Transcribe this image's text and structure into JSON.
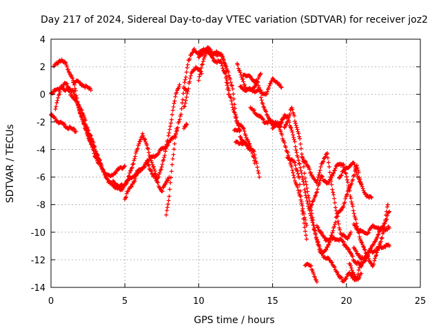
{
  "chart_data": {
    "type": "scatter",
    "title": "Day 217 of 2024, Sidereal Day-to-day VTEC variation (SDTVAR) for receiver joz2",
    "xlabel": "GPS time / hours",
    "ylabel": "SDTVAR / TECUs",
    "xlim": [
      0,
      25
    ],
    "ylim": [
      -14,
      4
    ],
    "xticks": [
      0,
      5,
      10,
      15,
      20,
      25
    ],
    "yticks": [
      -14,
      -12,
      -10,
      -8,
      -6,
      -4,
      -2,
      0,
      2,
      4
    ],
    "grid": true,
    "marker": "plus",
    "color": "#ff0000",
    "tracks": [
      [
        [
          0.0,
          -1.5
        ],
        [
          0.5,
          -2.0
        ],
        [
          1.0,
          -2.3
        ],
        [
          1.7,
          -2.7
        ]
      ],
      [
        [
          0.0,
          0.1
        ],
        [
          0.5,
          0.4
        ],
        [
          1.0,
          0.8
        ],
        [
          1.5,
          0.2
        ],
        [
          2.0,
          -1.0
        ],
        [
          2.5,
          -2.5
        ],
        [
          3.0,
          -4.0
        ],
        [
          3.5,
          -5.5
        ],
        [
          4.0,
          -6.5
        ],
        [
          4.5,
          -6.8
        ],
        [
          5.0,
          -6.5
        ],
        [
          5.5,
          -6.0
        ],
        [
          6.0,
          -5.5
        ],
        [
          6.5,
          -5.0
        ]
      ],
      [
        [
          0.2,
          2.0
        ],
        [
          0.6,
          2.5
        ],
        [
          1.0,
          2.2
        ],
        [
          1.5,
          1.0
        ],
        [
          2.0,
          -1.5
        ],
        [
          2.5,
          -3.0
        ],
        [
          3.0,
          -4.5
        ],
        [
          3.5,
          -5.5
        ],
        [
          4.0,
          -6.0
        ],
        [
          4.5,
          -5.5
        ],
        [
          5.0,
          -5.2
        ]
      ],
      [
        [
          0.3,
          -1.0
        ],
        [
          0.7,
          0.5
        ],
        [
          1.2,
          0.2
        ],
        [
          1.7,
          -0.5
        ],
        [
          2.2,
          -2.0
        ],
        [
          2.7,
          -3.5
        ],
        [
          3.3,
          -4.8
        ]
      ],
      [
        [
          1.5,
          1.0
        ],
        [
          2.0,
          0.8
        ],
        [
          2.7,
          0.3
        ]
      ],
      [
        [
          4.2,
          -6.2
        ],
        [
          4.7,
          -7.0
        ],
        [
          5.2,
          -6.2
        ],
        [
          5.7,
          -4.5
        ],
        [
          6.2,
          -2.8
        ],
        [
          6.7,
          -4.5
        ],
        [
          7.2,
          -6.2
        ],
        [
          7.7,
          -4.5
        ],
        [
          8.2,
          -1.5
        ],
        [
          8.5,
          0.2
        ],
        [
          8.7,
          0.7
        ]
      ],
      [
        [
          5.0,
          -7.5
        ],
        [
          5.5,
          -6.5
        ],
        [
          6.0,
          -5.5
        ],
        [
          6.5,
          -5.0
        ],
        [
          7.0,
          -6.0
        ],
        [
          7.5,
          -7.0
        ],
        [
          8.0,
          -6.0
        ]
      ],
      [
        [
          6.5,
          -4.8
        ],
        [
          7.0,
          -4.5
        ],
        [
          7.5,
          -4.0
        ],
        [
          8.0,
          -3.5
        ],
        [
          8.4,
          -3.0
        ],
        [
          8.8,
          -1.5
        ],
        [
          9.0,
          0.5
        ],
        [
          9.2,
          0.3
        ]
      ],
      [
        [
          7.8,
          -8.8
        ],
        [
          8.0,
          -7.5
        ],
        [
          8.2,
          -5.0
        ],
        [
          8.5,
          -2.5
        ]
      ],
      [
        [
          9.0,
          -2.5
        ],
        [
          9.2,
          -2.2
        ]
      ],
      [
        [
          9.0,
          -1.0
        ],
        [
          9.3,
          0.5
        ],
        [
          9.5,
          1.5
        ],
        [
          9.8,
          2.0
        ],
        [
          10.2,
          1.5
        ]
      ],
      [
        [
          9.0,
          0.5
        ],
        [
          9.3,
          2.5
        ],
        [
          9.7,
          3.2
        ],
        [
          10.0,
          3.0
        ],
        [
          10.5,
          3.3
        ],
        [
          11.0,
          2.5
        ],
        [
          11.5,
          2.3
        ],
        [
          11.8,
          1.5
        ],
        [
          12.0,
          0.0
        ]
      ],
      [
        [
          10.0,
          1.0
        ],
        [
          10.3,
          2.5
        ],
        [
          10.6,
          3.4
        ],
        [
          10.9,
          3.0
        ],
        [
          11.2,
          3.0
        ],
        [
          11.6,
          2.8
        ],
        [
          12.0,
          1.5
        ],
        [
          12.3,
          0.5
        ],
        [
          12.5,
          -1.5
        ],
        [
          12.8,
          -3.0
        ],
        [
          13.2,
          -3.7
        ],
        [
          13.7,
          -4.0
        ],
        [
          14.1,
          -6.0
        ]
      ],
      [
        [
          10.0,
          2.8
        ],
        [
          10.5,
          3.2
        ],
        [
          11.0,
          2.9
        ],
        [
          11.5,
          3.0
        ],
        [
          11.8,
          2.0
        ],
        [
          12.0,
          0.5
        ],
        [
          12.3,
          -1.0
        ],
        [
          12.6,
          -2.0
        ],
        [
          13.0,
          -2.5
        ],
        [
          13.4,
          -3.5
        ],
        [
          13.8,
          -5.0
        ]
      ],
      [
        [
          12.4,
          -2.5
        ],
        [
          12.8,
          -2.6
        ]
      ],
      [
        [
          12.5,
          -3.5
        ],
        [
          13.0,
          -3.5
        ],
        [
          13.5,
          -4.0
        ]
      ],
      [
        [
          12.6,
          2.3
        ],
        [
          12.9,
          1.2
        ],
        [
          13.2,
          0.5
        ],
        [
          13.6,
          0.3
        ],
        [
          13.9,
          0.8
        ],
        [
          14.2,
          1.5
        ]
      ],
      [
        [
          12.8,
          0.5
        ],
        [
          13.2,
          0.3
        ],
        [
          13.6,
          0.3
        ],
        [
          14.2,
          0.2
        ],
        [
          14.6,
          0.0
        ],
        [
          15.0,
          1.2
        ],
        [
          15.3,
          0.8
        ],
        [
          15.6,
          0.5
        ]
      ],
      [
        [
          13.0,
          1.5
        ],
        [
          13.5,
          1.2
        ],
        [
          14.0,
          0.8
        ],
        [
          14.3,
          -0.5
        ],
        [
          14.6,
          -1.5
        ],
        [
          15.0,
          -2.2
        ],
        [
          15.5,
          -2.3
        ],
        [
          15.8,
          -1.5
        ]
      ],
      [
        [
          13.5,
          -1.0
        ],
        [
          14.0,
          -1.5
        ],
        [
          14.5,
          -2.0
        ],
        [
          14.8,
          -2.0
        ],
        [
          15.3,
          -2.0
        ],
        [
          15.8,
          -3.5
        ],
        [
          16.2,
          -5.0
        ],
        [
          16.6,
          -6.5
        ],
        [
          17.0,
          -8.0
        ],
        [
          17.3,
          -9.5
        ]
      ],
      [
        [
          15.0,
          -2.5
        ],
        [
          15.5,
          -2.0
        ],
        [
          16.0,
          -1.5
        ],
        [
          16.5,
          -3.5
        ],
        [
          17.0,
          -6.0
        ],
        [
          17.5,
          -8.5
        ],
        [
          18.0,
          -10.5
        ],
        [
          18.3,
          -11.5
        ]
      ],
      [
        [
          15.8,
          -2.5
        ],
        [
          16.3,
          -1.0
        ],
        [
          16.8,
          -3.0
        ],
        [
          17.2,
          -6.0
        ],
        [
          17.7,
          -9.0
        ],
        [
          18.2,
          -11.5
        ],
        [
          18.8,
          -12.0
        ],
        [
          19.2,
          -12.5
        ],
        [
          19.5,
          -13.3
        ],
        [
          19.8,
          -13.5
        ],
        [
          20.2,
          -13.0
        ],
        [
          20.7,
          -13.5
        ],
        [
          21.0,
          -12.0
        ]
      ],
      [
        [
          16.0,
          -4.5
        ],
        [
          16.5,
          -5.0
        ],
        [
          16.8,
          -6.0
        ],
        [
          17.0,
          -8.5
        ],
        [
          17.3,
          -10.5
        ]
      ],
      [
        [
          17.0,
          -4.5
        ],
        [
          17.5,
          -5.5
        ],
        [
          18.0,
          -6.5
        ],
        [
          18.3,
          -5.0
        ],
        [
          18.7,
          -4.3
        ],
        [
          19.0,
          -6.5
        ],
        [
          19.3,
          -8.5
        ],
        [
          19.6,
          -10.0
        ],
        [
          20.0,
          -10.5
        ],
        [
          20.3,
          -10.0
        ]
      ],
      [
        [
          17.2,
          -12.3
        ],
        [
          17.6,
          -12.5
        ],
        [
          18.0,
          -13.6
        ]
      ],
      [
        [
          17.5,
          -8.5
        ],
        [
          18.0,
          -7.0
        ],
        [
          18.3,
          -6.0
        ],
        [
          18.8,
          -6.5
        ],
        [
          19.3,
          -5.2
        ],
        [
          19.8,
          -5.0
        ],
        [
          20.3,
          -7.5
        ],
        [
          20.8,
          -10.0
        ],
        [
          21.3,
          -11.5
        ],
        [
          21.8,
          -12.5
        ],
        [
          22.2,
          -11.0
        ],
        [
          22.5,
          -10.0
        ],
        [
          22.8,
          -8.0
        ]
      ],
      [
        [
          18.0,
          -9.5
        ],
        [
          18.5,
          -10.5
        ],
        [
          19.0,
          -10.5
        ],
        [
          19.5,
          -10.5
        ],
        [
          20.0,
          -11.0
        ],
        [
          20.5,
          -12.0
        ],
        [
          21.0,
          -12.5
        ]
      ],
      [
        [
          18.3,
          -11.5
        ],
        [
          18.8,
          -11.0
        ],
        [
          19.3,
          -9.0
        ],
        [
          19.8,
          -8.0
        ],
        [
          20.3,
          -6.5
        ],
        [
          20.7,
          -5.2
        ],
        [
          21.0,
          -6.5
        ]
      ],
      [
        [
          19.5,
          -6.0
        ],
        [
          20.0,
          -5.3
        ],
        [
          20.5,
          -5.0
        ],
        [
          20.8,
          -6.0
        ],
        [
          21.2,
          -7.2
        ],
        [
          21.7,
          -7.5
        ]
      ],
      [
        [
          20.2,
          -12.3
        ],
        [
          20.5,
          -13.0
        ],
        [
          20.8,
          -13.5
        ],
        [
          21.0,
          -13.0
        ]
      ],
      [
        [
          20.5,
          -11.0
        ],
        [
          21.0,
          -12.0
        ],
        [
          21.5,
          -11.5
        ],
        [
          22.0,
          -11.3
        ],
        [
          22.5,
          -11.0
        ],
        [
          22.9,
          -11.0
        ]
      ],
      [
        [
          20.5,
          -9.5
        ],
        [
          21.0,
          -10.0
        ],
        [
          21.5,
          -10.0
        ],
        [
          21.8,
          -9.5
        ],
        [
          22.3,
          -9.8
        ],
        [
          22.9,
          -9.7
        ]
      ],
      [
        [
          21.0,
          -12.5
        ],
        [
          21.5,
          -11.5
        ],
        [
          22.0,
          -10.5
        ],
        [
          22.5,
          -9.5
        ],
        [
          22.9,
          -8.5
        ]
      ]
    ]
  }
}
